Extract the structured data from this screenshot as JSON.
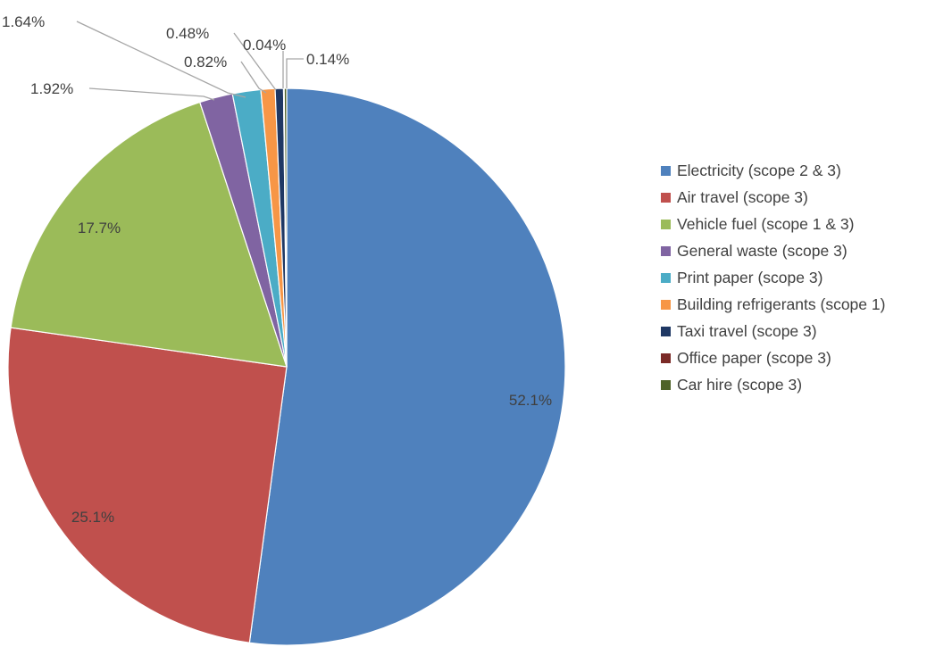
{
  "chart_data": {
    "type": "pie",
    "categories": [
      "Electricity (scope 2 & 3)",
      "Air travel (scope 3)",
      "Vehicle fuel (scope 1 & 3)",
      "General waste (scope 3)",
      "Print paper (scope 3)",
      "Building refrigerants (scope 1)",
      "Taxi travel (scope 3)",
      "Office paper (scope 3)",
      "Car hire (scope 3)"
    ],
    "values": [
      52.1,
      25.1,
      17.7,
      1.92,
      1.64,
      0.82,
      0.48,
      0.04,
      0.14
    ],
    "data_labels": [
      "52.1%",
      "25.1%",
      "17.7%",
      "1.92%",
      "1.64%",
      "0.82%",
      "0.48%",
      "0.04%",
      "0.14%"
    ],
    "colors": [
      "#4f81bd",
      "#c0504d",
      "#9bbb59",
      "#8064a2",
      "#4bacc6",
      "#f79646",
      "#1f3864",
      "#7b2a27",
      "#4f6228"
    ],
    "legend_position": "right",
    "start_angle": "12 o'clock",
    "direction": "clockwise"
  }
}
